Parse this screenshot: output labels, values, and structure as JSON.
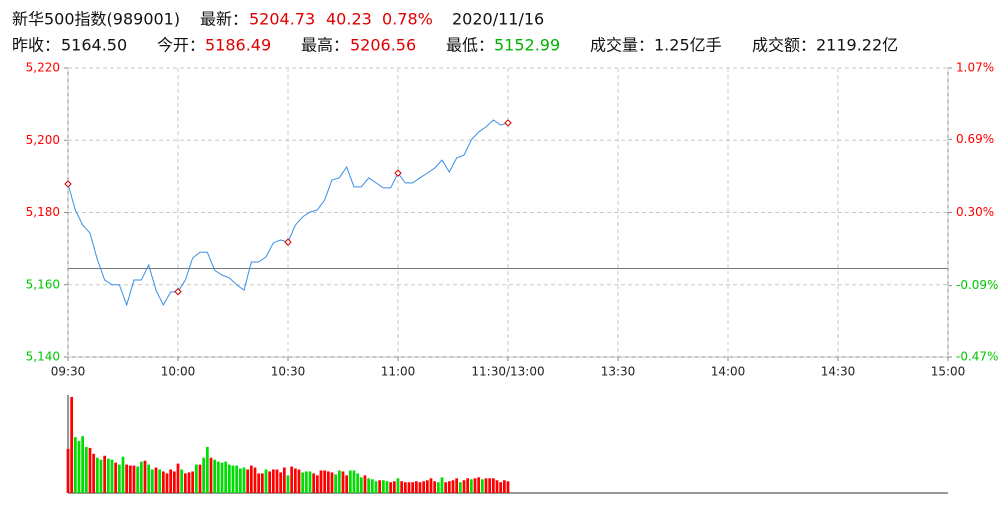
{
  "header": {
    "name": "新华500指数(989001)",
    "latest_label": "最新：",
    "latest": "5204.73",
    "change": "40.23",
    "change_pct": "0.78%",
    "date": "2020/11/16",
    "prev_close_label": "昨收：",
    "prev_close": "5164.50",
    "open_label": "今开：",
    "open": "5186.49",
    "high_label": "最高：",
    "high": "5206.56",
    "low_label": "最低：",
    "low": "5152.99",
    "volume_label": "成交量：",
    "volume": "1.25亿手",
    "amount_label": "成交额：",
    "amount": "2119.22亿"
  },
  "chart_data": [
    {
      "type": "line",
      "color": "#3a8ee6",
      "marker_color": "#d40000",
      "prev_close": 5164.5,
      "up_color": "#ff0000",
      "down_color": "#00c800",
      "x": [
        "09:30",
        "09:32",
        "09:34",
        "09:36",
        "09:38",
        "09:40",
        "09:42",
        "09:44",
        "09:46",
        "09:48",
        "09:50",
        "09:52",
        "09:54",
        "09:56",
        "09:58",
        "10:00",
        "10:02",
        "10:04",
        "10:06",
        "10:08",
        "10:10",
        "10:12",
        "10:14",
        "10:16",
        "10:18",
        "10:20",
        "10:22",
        "10:24",
        "10:26",
        "10:28",
        "10:30",
        "10:32",
        "10:34",
        "10:36",
        "10:38",
        "10:40",
        "10:42",
        "10:44",
        "10:46",
        "10:48",
        "10:50",
        "10:52",
        "10:54",
        "10:56",
        "10:58",
        "11:00",
        "11:02",
        "11:04",
        "11:06",
        "11:08",
        "11:10",
        "11:12",
        "11:14",
        "11:16",
        "11:18",
        "11:20",
        "11:22",
        "11:24",
        "11:26",
        "11:28",
        "11:30"
      ],
      "values": [
        5187.9,
        5180.7,
        5176.5,
        5174.3,
        5167,
        5161.3,
        5160,
        5160,
        5154.4,
        5161.3,
        5161.3,
        5165.5,
        5158.5,
        5154.4,
        5158,
        5158.1,
        5161.3,
        5167.4,
        5169,
        5169,
        5164,
        5162.7,
        5161.9,
        5160,
        5158.5,
        5166.3,
        5166.3,
        5167.7,
        5171.6,
        5172.4,
        5171.8,
        5176.5,
        5178.8,
        5180.1,
        5180.7,
        5183.5,
        5189,
        5189.6,
        5192.6,
        5187.1,
        5187.1,
        5189.6,
        5188.2,
        5186.8,
        5186.8,
        5190.9,
        5188.2,
        5188.2,
        5189.6,
        5190.9,
        5192.3,
        5194.5,
        5191.2,
        5195.1,
        5195.9,
        5200.1,
        5202.3,
        5203.7,
        5205.6,
        5204.2,
        5204.8
      ],
      "xlim": [
        "09:30",
        "15:00"
      ],
      "xticks": [
        "09:30",
        "10:00",
        "10:30",
        "11:00",
        "11:30/13:00",
        "13:30",
        "14:00",
        "14:30",
        "15:00"
      ],
      "ylim": [
        5140,
        5220
      ],
      "yticks": [
        {
          "value": 5140,
          "label": "5,140"
        },
        {
          "value": 5160,
          "label": "5,160"
        },
        {
          "value": 5180,
          "label": "5,180"
        },
        {
          "value": 5200,
          "label": "5,200"
        },
        {
          "value": 5220,
          "label": "5,220"
        }
      ],
      "y2lim": [
        -0.47,
        1.07
      ],
      "y2ticks": [
        {
          "value": -0.47,
          "label": "-0.47%"
        },
        {
          "value": -0.09,
          "label": "-0.09%"
        },
        {
          "value": 0.3,
          "label": "0.30%"
        },
        {
          "value": 0.69,
          "label": "0.69%"
        },
        {
          "value": 1.07,
          "label": "1.07%"
        }
      ],
      "grid": true
    },
    {
      "type": "bar",
      "ylim": [
        0,
        100
      ],
      "values": [
        45,
        98,
        57,
        53,
        58,
        47,
        46,
        40,
        36,
        34,
        38,
        35,
        34,
        31,
        29,
        37,
        29,
        28,
        28,
        27,
        32,
        33,
        29,
        24,
        26,
        24,
        22,
        20,
        24,
        22,
        30,
        24,
        20,
        21,
        22,
        29,
        29,
        36,
        47,
        36,
        34,
        32,
        31,
        32,
        29,
        28,
        28,
        25,
        26,
        24,
        28,
        26,
        20,
        20,
        24,
        22,
        24,
        24,
        21,
        26,
        18,
        27,
        25,
        24,
        21,
        22,
        22,
        20,
        18,
        23,
        23,
        22,
        21,
        19,
        23,
        22,
        18,
        23,
        23,
        20,
        16,
        18,
        15,
        14,
        12,
        13,
        13,
        12,
        11,
        12,
        15,
        12,
        11,
        11,
        11,
        12,
        11,
        12,
        13,
        15,
        12,
        11,
        16,
        11,
        12,
        13,
        15,
        11,
        13,
        15,
        14,
        15,
        16,
        14,
        15,
        15,
        15,
        13,
        11,
        13,
        12
      ],
      "colors": [
        "#f00",
        "#f00",
        "#0d0",
        "#0d0",
        "#0d0",
        "#0d0",
        "#f00",
        "#f00",
        "#0d0",
        "#0d0",
        "#f00",
        "#0d0",
        "#0d0",
        "#f00",
        "#0d0",
        "#0d0",
        "#f00",
        "#f00",
        "#f00",
        "#0d0",
        "#0d0",
        "#f00",
        "#0d0",
        "#0d0",
        "#f00",
        "#0d0",
        "#f00",
        "#f00",
        "#f00",
        "#f00",
        "#f00",
        "#0d0",
        "#f00",
        "#f00",
        "#f00",
        "#0d0",
        "#f00",
        "#0d0",
        "#0d0",
        "#f00",
        "#0d0",
        "#0d0",
        "#0d0",
        "#0d0",
        "#0d0",
        "#0d0",
        "#0d0",
        "#0d0",
        "#0d0",
        "#f00",
        "#f00",
        "#f00",
        "#f00",
        "#f00",
        "#0d0",
        "#f00",
        "#f00",
        "#f00",
        "#f00",
        "#f00",
        "#0d0",
        "#f00",
        "#f00",
        "#f00",
        "#0d0",
        "#0d0",
        "#0d0",
        "#f00",
        "#f00",
        "#f00",
        "#f00",
        "#f00",
        "#f00",
        "#0d0",
        "#0d0",
        "#f00",
        "#f00",
        "#0d0",
        "#0d0",
        "#0d0",
        "#0d0",
        "#f00",
        "#0d0",
        "#0d0",
        "#0d0",
        "#f00",
        "#0d0",
        "#0d0",
        "#f00",
        "#f00",
        "#0d0",
        "#f00",
        "#f00",
        "#f00",
        "#f00",
        "#f00",
        "#f00",
        "#f00",
        "#f00",
        "#f00",
        "#f00",
        "#0d0",
        "#0d0",
        "#f00",
        "#f00",
        "#f00",
        "#f00",
        "#0d0",
        "#f00",
        "#f00",
        "#0d0",
        "#f00",
        "#f00",
        "#0d0",
        "#f00",
        "#f00",
        "#f00",
        "#f00",
        "#f00",
        "#f00",
        "#f00"
      ]
    }
  ]
}
